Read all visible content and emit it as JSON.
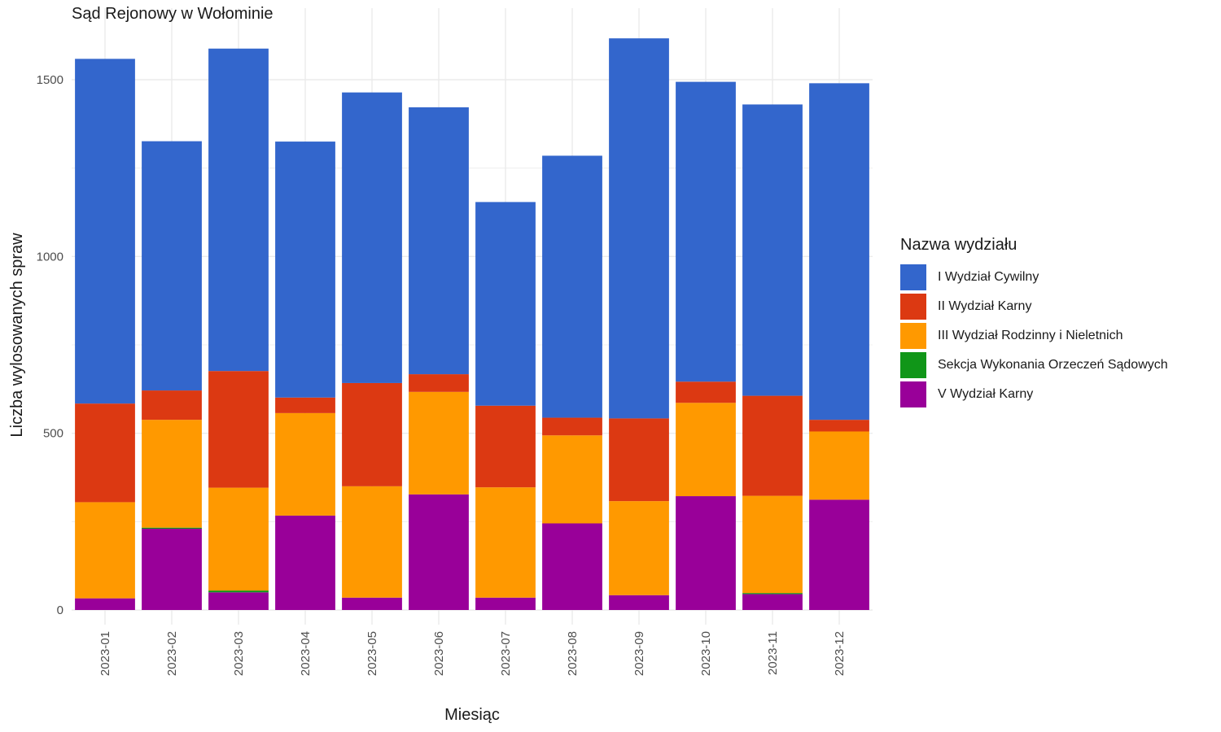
{
  "chart_data": {
    "type": "bar",
    "stacked": true,
    "title": "Sąd Rejonowy w Wołominie",
    "xlabel": "Miesiąc",
    "ylabel": "Liczba wylosowanych spraw",
    "ylim": [
      0,
      1650
    ],
    "yticks": [
      0,
      500,
      1000,
      1500
    ],
    "grid": true,
    "legend_title": "Nazwa wydziału",
    "legend_position": "right",
    "categories": [
      "2023-01",
      "2023-02",
      "2023-03",
      "2023-04",
      "2023-05",
      "2023-06",
      "2023-07",
      "2023-08",
      "2023-09",
      "2023-10",
      "2023-11",
      "2023-12"
    ],
    "series": [
      {
        "name": "V Wydział Karny",
        "color": "#990099",
        "values": [
          33,
          230,
          50,
          267,
          35,
          327,
          35,
          245,
          42,
          322,
          45,
          312
        ]
      },
      {
        "name": "Sekcja Wykonania Orzeczeń Sądowych",
        "color": "#109618",
        "values": [
          0,
          3,
          5,
          0,
          0,
          0,
          0,
          0,
          0,
          0,
          3,
          0
        ]
      },
      {
        "name": "III Wydział Rodzinny i Nieletnich",
        "color": "#FF9900",
        "values": [
          272,
          305,
          291,
          290,
          315,
          290,
          312,
          249,
          266,
          264,
          275,
          193
        ]
      },
      {
        "name": "II Wydział Karny",
        "color": "#DC3912",
        "values": [
          279,
          83,
          330,
          44,
          292,
          50,
          231,
          50,
          234,
          60,
          283,
          33
        ]
      },
      {
        "name": "I Wydział Cywilny",
        "color": "#3366CC",
        "values": [
          975,
          705,
          912,
          724,
          822,
          755,
          576,
          741,
          1075,
          848,
          824,
          952
        ]
      }
    ],
    "legend_order": [
      "I Wydział Cywilny",
      "II Wydział Karny",
      "III Wydział Rodzinny i Nieletnich",
      "Sekcja Wykonania Orzeczeń Sądowych",
      "V Wydział Karny"
    ]
  }
}
